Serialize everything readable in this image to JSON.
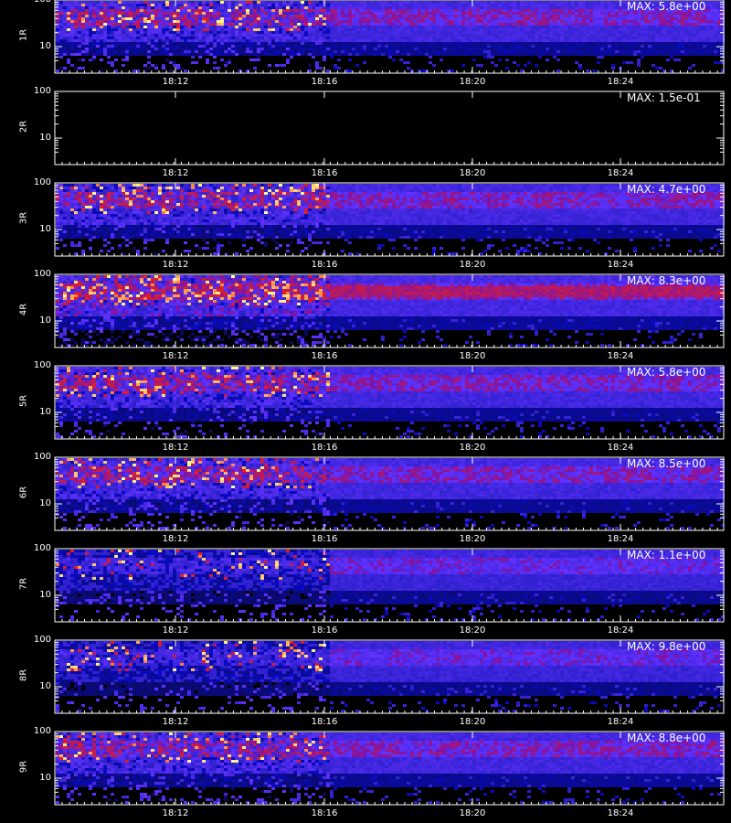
{
  "chart_data": [
    {
      "type": "heatmap",
      "ylabel": "1R",
      "max_text": "MAX: 5.8e+00",
      "max": 5.8,
      "yticks": [
        "100",
        "10"
      ],
      "xticks": [
        "18:12",
        "18:16",
        "18:20",
        "18:24"
      ],
      "intensity": "high"
    },
    {
      "type": "heatmap",
      "ylabel": "2R",
      "max_text": "MAX: 1.5e-01",
      "max": 0.15,
      "yticks": [
        "100",
        "10"
      ],
      "xticks": [
        "18:12",
        "18:16",
        "18:20",
        "18:24"
      ],
      "intensity": "none"
    },
    {
      "type": "heatmap",
      "ylabel": "3R",
      "max_text": "MAX: 4.7e+00",
      "max": 4.7,
      "yticks": [
        "100",
        "10"
      ],
      "xticks": [
        "18:12",
        "18:16",
        "18:20",
        "18:24"
      ],
      "intensity": "high"
    },
    {
      "type": "heatmap",
      "ylabel": "4R",
      "max_text": "MAX: 8.3e+00",
      "max": 8.3,
      "yticks": [
        "100",
        "10"
      ],
      "xticks": [
        "18:12",
        "18:16",
        "18:20",
        "18:24"
      ],
      "intensity": "very-high"
    },
    {
      "type": "heatmap",
      "ylabel": "5R",
      "max_text": "MAX: 5.8e+00",
      "max": 5.8,
      "yticks": [
        "100",
        "10"
      ],
      "xticks": [
        "18:12",
        "18:16",
        "18:20",
        "18:24"
      ],
      "intensity": "high"
    },
    {
      "type": "heatmap",
      "ylabel": "6R",
      "max_text": "MAX: 8.5e+00",
      "max": 8.5,
      "yticks": [
        "100",
        "10"
      ],
      "xticks": [
        "18:12",
        "18:16",
        "18:20",
        "18:24"
      ],
      "intensity": "high"
    },
    {
      "type": "heatmap",
      "ylabel": "7R",
      "max_text": "MAX: 1.1e+00",
      "max": 1.1,
      "yticks": [
        "100",
        "10"
      ],
      "xticks": [
        "18:12",
        "18:16",
        "18:20",
        "18:24"
      ],
      "intensity": "medium"
    },
    {
      "type": "heatmap",
      "ylabel": "8R",
      "max_text": "MAX: 9.8e+00",
      "max": 9.8,
      "yticks": [
        "100",
        "10"
      ],
      "xticks": [
        "18:12",
        "18:16",
        "18:20",
        "18:24"
      ],
      "intensity": "medium"
    },
    {
      "type": "heatmap",
      "ylabel": "9R",
      "max_text": "MAX: 8.8e+00",
      "max": 8.8,
      "yticks": [
        "100",
        "10"
      ],
      "xticks": [
        "18:12",
        "18:16",
        "18:20",
        "18:24"
      ],
      "intensity": "high"
    }
  ],
  "colors": {
    "background": "#000000",
    "axis": "#ffffff",
    "text": "#ffffff",
    "low": "#1a1aff",
    "mid": "#c81e1e",
    "high": "#ffff66"
  }
}
